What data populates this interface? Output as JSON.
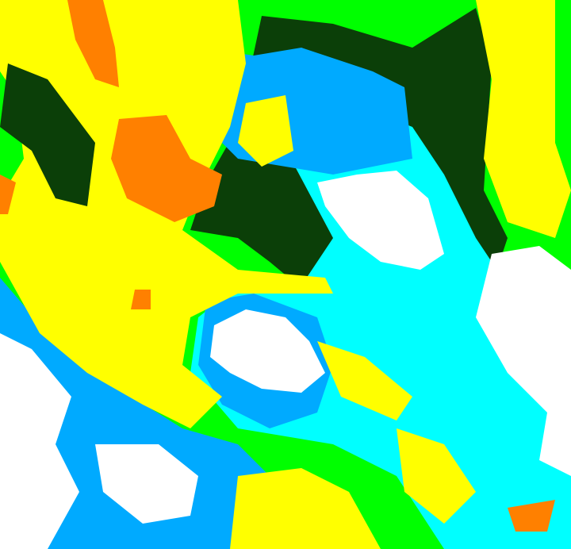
{
  "image": {
    "kind": "false-color satellite cloud classification",
    "palette": {
      "yellow": "#ffff00",
      "orange": "#ff8000",
      "green": "#00ff00",
      "dark_green": "#0b3f08",
      "cyan": "#00ffff",
      "light_blue": "#00aaff",
      "white": "#ffffff"
    }
  }
}
